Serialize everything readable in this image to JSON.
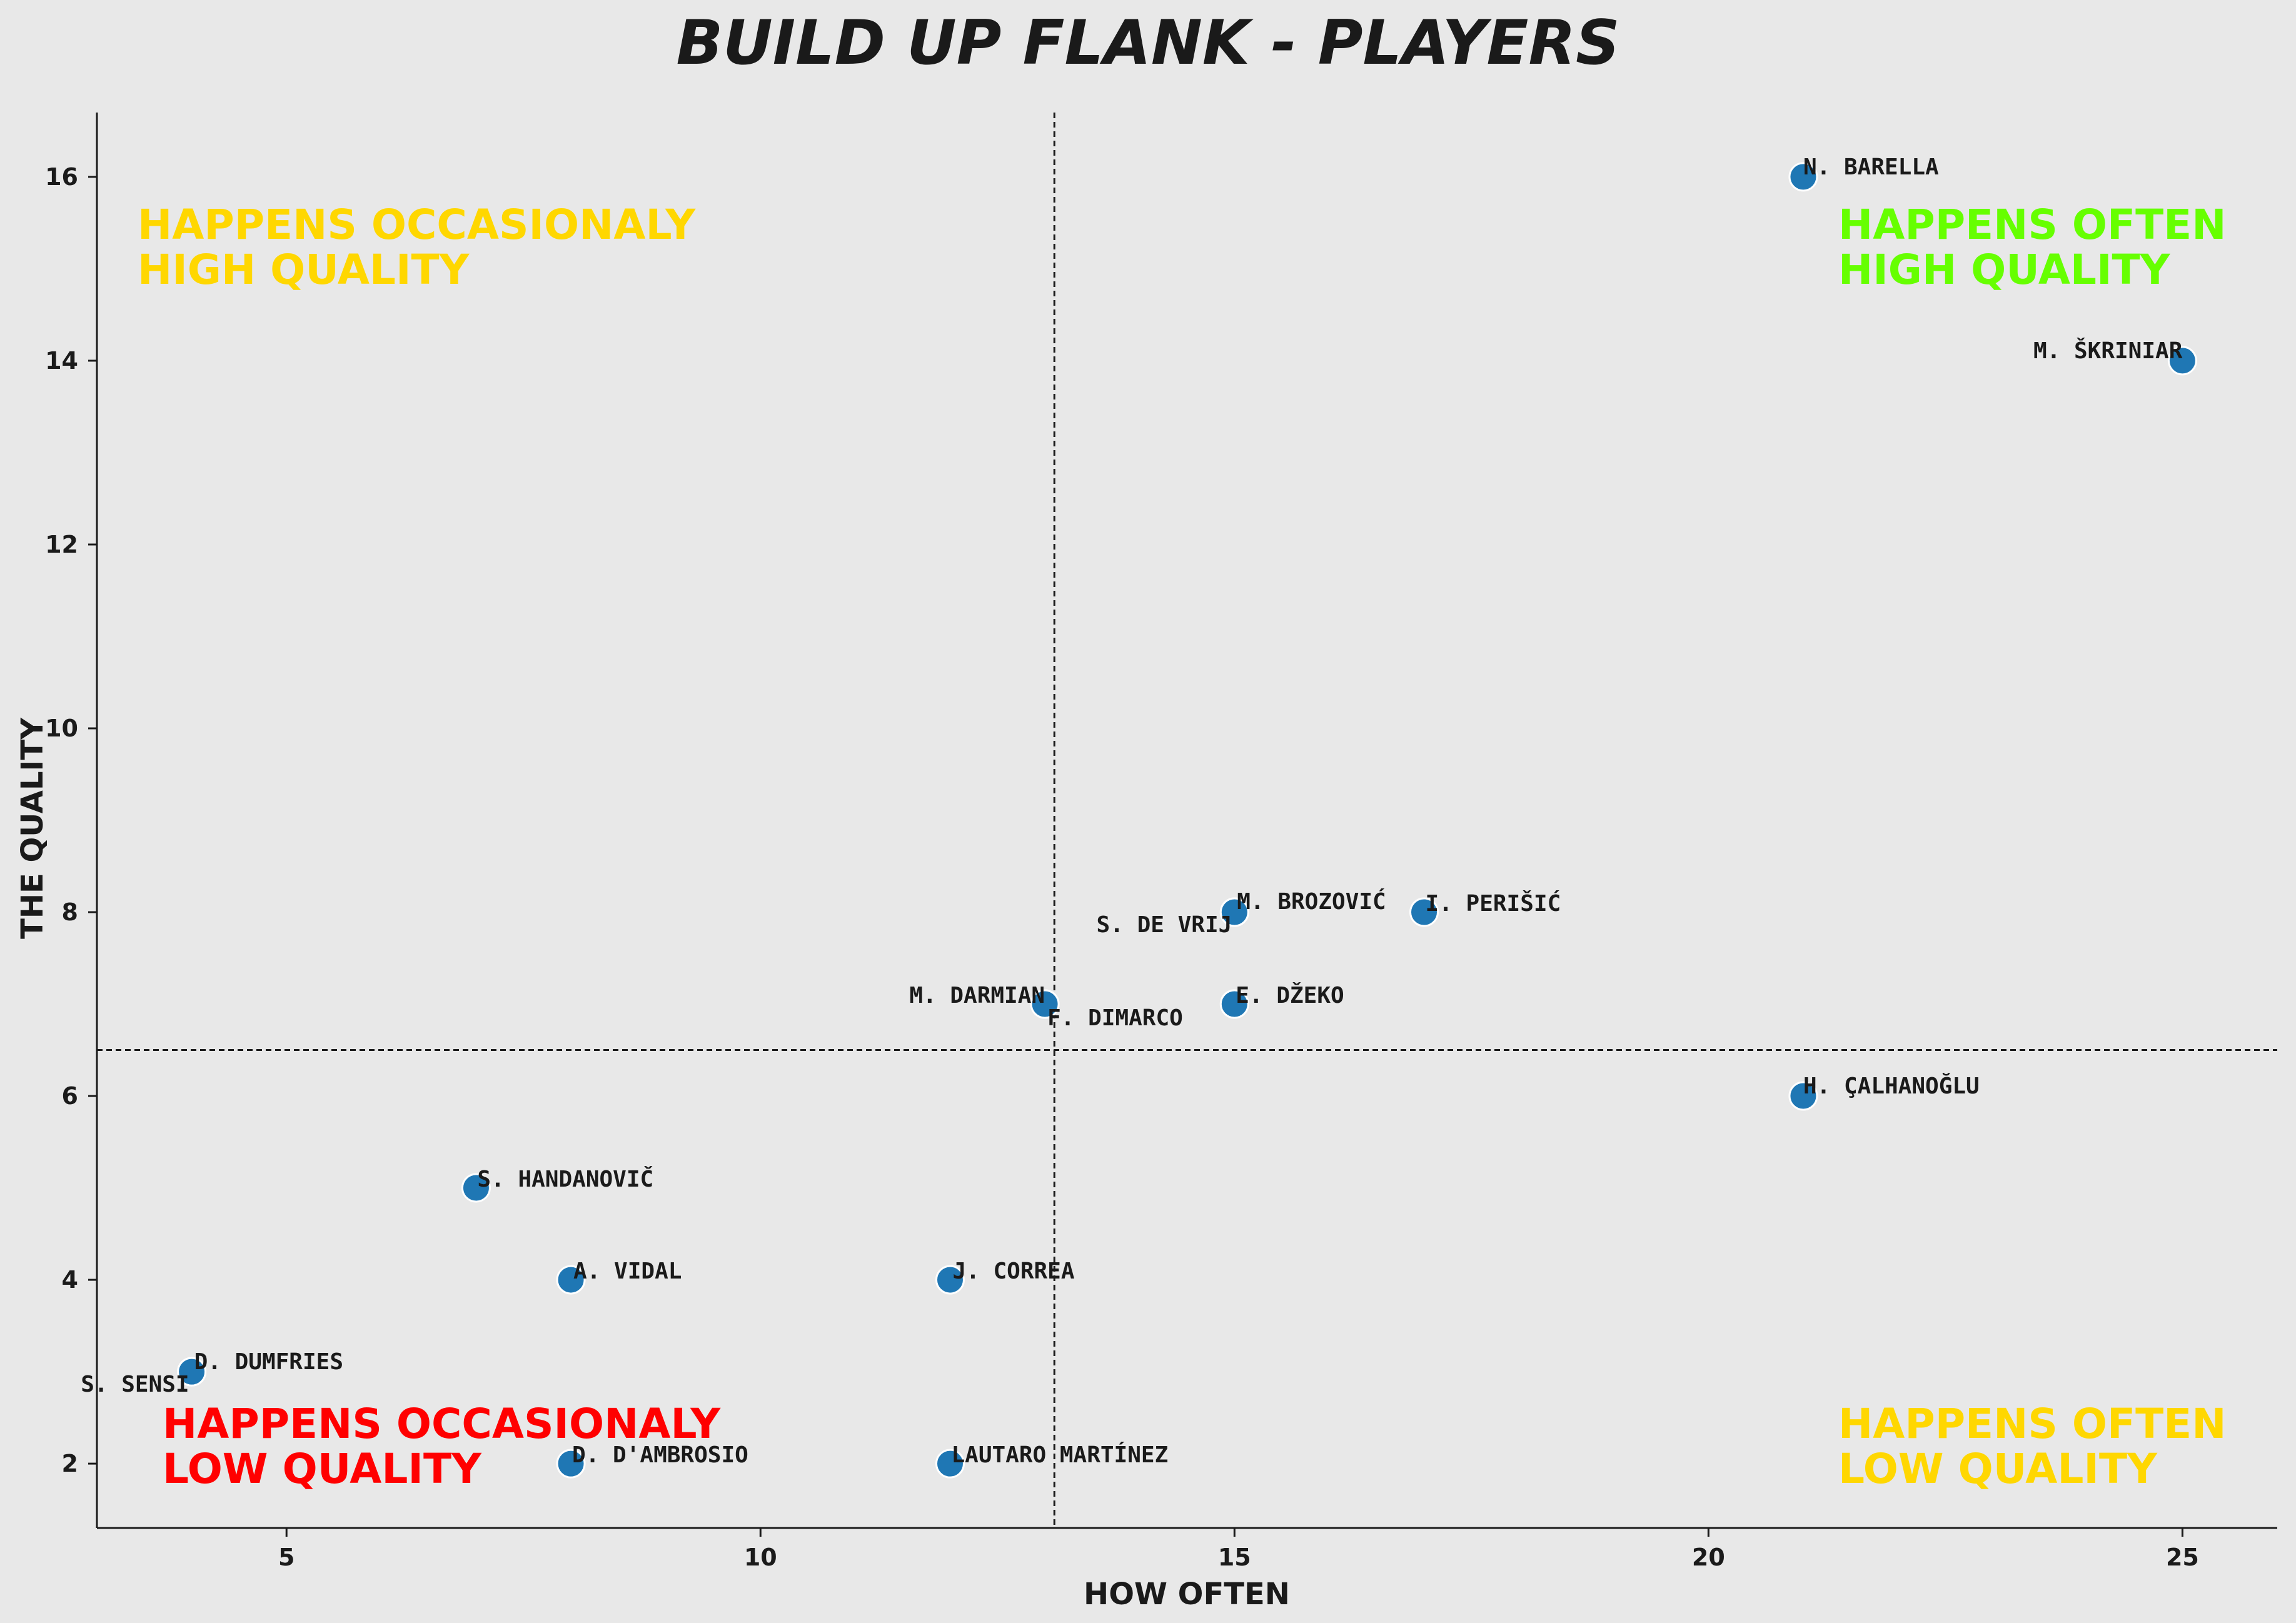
{
  "chart_data": {
    "type": "scatter",
    "title": "BUILD UP FLANK - PLAYERS",
    "xlabel": "HOW OFTEN",
    "ylabel": "THE QUALITY",
    "xlim": [
      3,
      26
    ],
    "ylim": [
      1.3,
      16.7
    ],
    "xticks": [
      5,
      10,
      15,
      20,
      25
    ],
    "yticks": [
      2,
      4,
      6,
      8,
      10,
      12,
      14,
      16
    ],
    "mean_lines": {
      "x": 13.1,
      "y": 6.5
    },
    "grid": false,
    "point_color": "#1f77b4",
    "points": [
      {
        "name": "N. BARELLA",
        "x": 21,
        "y": 16
      },
      {
        "name": "M. ŠKRINIAR",
        "x": 25,
        "y": 14
      },
      {
        "name": "M. BROZOVIĆ",
        "x": 15,
        "y": 8
      },
      {
        "name": "S. DE VRIJ",
        "x": 15,
        "y": 8
      },
      {
        "name": "I. PERIŠIĆ",
        "x": 17,
        "y": 8
      },
      {
        "name": "M. DARMIAN",
        "x": 13,
        "y": 7
      },
      {
        "name": "F. DIMARCO",
        "x": 13,
        "y": 7
      },
      {
        "name": "E. DŽEKO",
        "x": 15,
        "y": 7
      },
      {
        "name": "H. ÇALHANOĞLU",
        "x": 21,
        "y": 6
      },
      {
        "name": "S. HANDANOVIČ",
        "x": 7,
        "y": 5
      },
      {
        "name": "A. VIDAL",
        "x": 8,
        "y": 4
      },
      {
        "name": "J. CORREA",
        "x": 12,
        "y": 4
      },
      {
        "name": "D. DUMFRIES",
        "x": 4,
        "y": 3
      },
      {
        "name": "S. SENSI",
        "x": 4,
        "y": 3
      },
      {
        "name": "D. D'AMBROSIO",
        "x": 8,
        "y": 2
      },
      {
        "name": "LAUTARO MARTÍNEZ",
        "x": 12,
        "y": 2
      }
    ],
    "quadrant_labels": [
      {
        "id": "tl",
        "line1": "HAPPENS OCCASIONALY",
        "line2": "HIGH QUALITY",
        "color": "#ffd700"
      },
      {
        "id": "tr",
        "line1": "HAPPENS OFTEN",
        "line2": "HIGH QUALITY",
        "color": "#66ff00"
      },
      {
        "id": "bl",
        "line1": "HAPPENS OCCASIONALY",
        "line2": "LOW QUALITY",
        "color": "#ff0000"
      },
      {
        "id": "br",
        "line1": "HAPPENS OFTEN",
        "line2": "LOW QUALITY",
        "color": "#ffd700"
      }
    ]
  }
}
